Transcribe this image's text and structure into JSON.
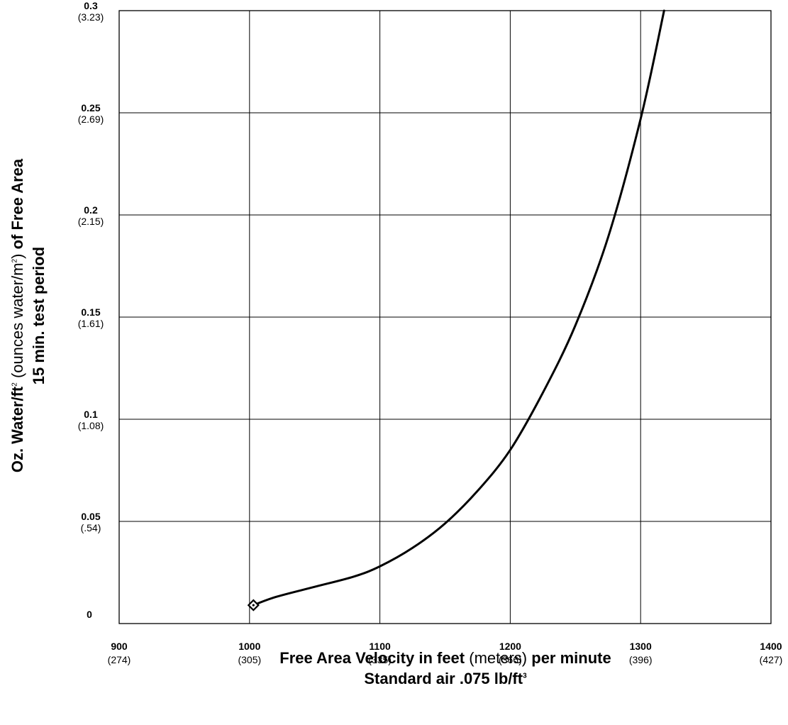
{
  "chart_data": {
    "type": "line",
    "xlabel": {
      "line1_a": "Free Area Velocity in feet",
      "line1_b": " (meters) ",
      "line1_c": "per minute",
      "line2": "Standard air .075 lb/ft",
      "line2_sup": "3"
    },
    "ylabel": {
      "line1_a": "Oz. Water/ft",
      "line1_sup1": "2",
      "line1_b": " (ounces water/m",
      "line1_sup2": "2",
      "line1_c": ") ",
      "line1_d": "of Free Area",
      "line2": "15 min. test period"
    },
    "xlim": [
      900,
      1400
    ],
    "ylim": [
      0,
      0.3
    ],
    "x_ticks": [
      {
        "value": 900,
        "label": "900",
        "sub": "(274)"
      },
      {
        "value": 1000,
        "label": "1000",
        "sub": "(305)"
      },
      {
        "value": 1100,
        "label": "1100",
        "sub": "(335)"
      },
      {
        "value": 1200,
        "label": "1200",
        "sub": "(366)"
      },
      {
        "value": 1300,
        "label": "1300",
        "sub": "(396)"
      },
      {
        "value": 1400,
        "label": "1400",
        "sub": "(427)"
      }
    ],
    "y_ticks": [
      {
        "value": 0,
        "label": "0",
        "sub": ""
      },
      {
        "value": 0.05,
        "label": "0.05",
        "sub": "(.54)"
      },
      {
        "value": 0.1,
        "label": "0.1",
        "sub": "(1.08)"
      },
      {
        "value": 0.15,
        "label": "0.15",
        "sub": "(1.61)"
      },
      {
        "value": 0.2,
        "label": "0.2",
        "sub": "(2.15)"
      },
      {
        "value": 0.25,
        "label": "0.25",
        "sub": "(2.69)"
      },
      {
        "value": 0.3,
        "label": "0.3",
        "sub": "(3.23)"
      }
    ],
    "grid": true,
    "series": [
      {
        "x": [
          1003,
          1020,
          1050,
          1080,
          1100,
          1125,
          1150,
          1175,
          1200,
          1225,
          1250,
          1275,
          1300,
          1318
        ],
        "y": [
          0.009,
          0.013,
          0.018,
          0.023,
          0.028,
          0.037,
          0.049,
          0.065,
          0.085,
          0.113,
          0.146,
          0.189,
          0.247,
          0.3
        ]
      }
    ],
    "start_marker": {
      "x": 1003,
      "y": 0.009,
      "shape": "diamond"
    }
  }
}
